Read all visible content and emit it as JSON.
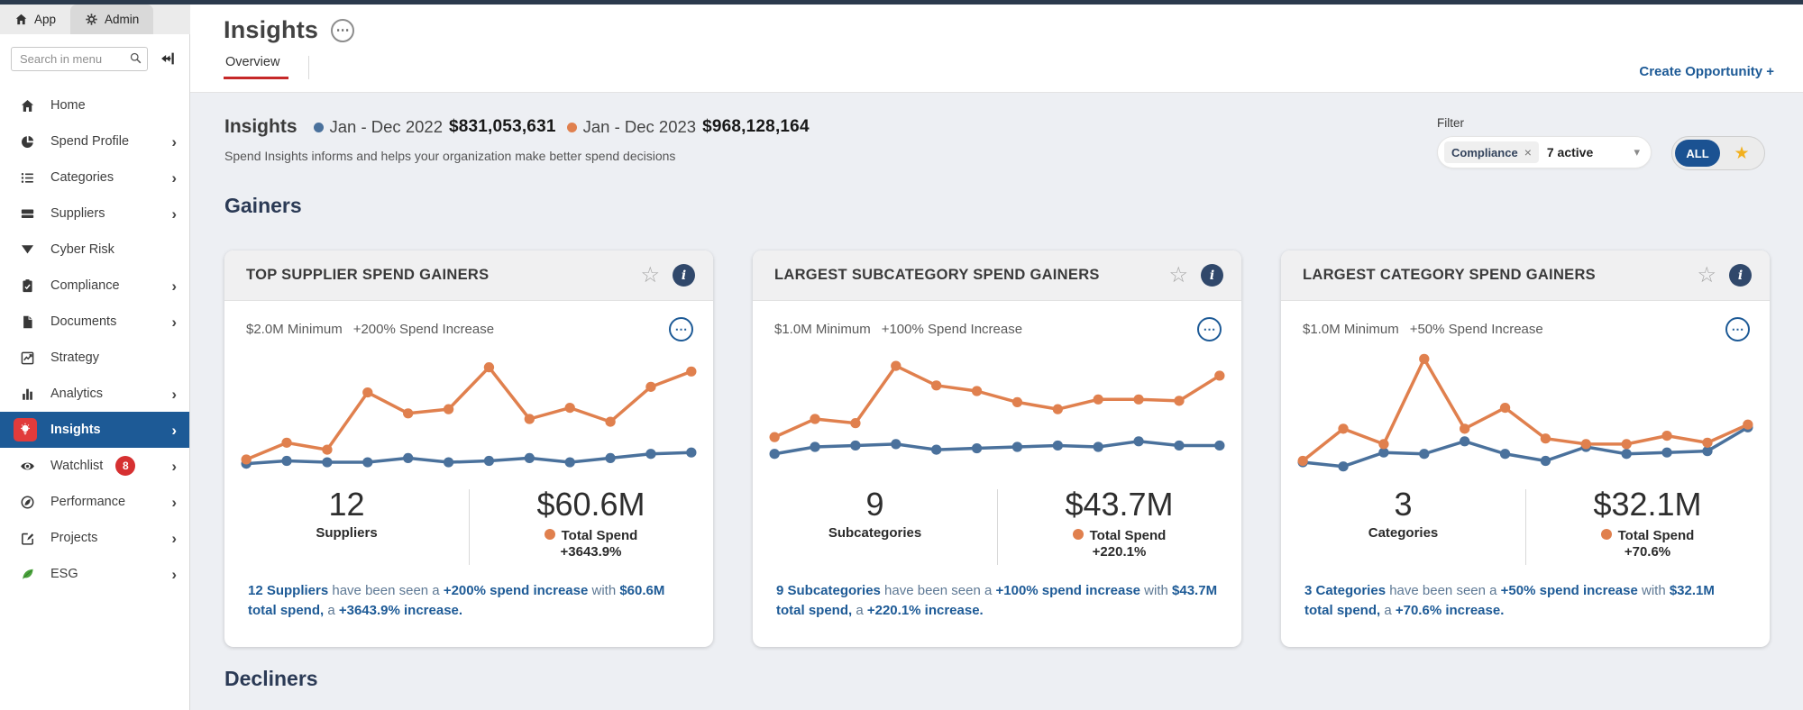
{
  "colors": {
    "navy": "#1d5a96",
    "series_blue": "#4a719c",
    "series_orange": "#e0804e",
    "red_accent": "#c62828",
    "badge_red": "#d63031",
    "star_yellow": "#f2b01e",
    "active_item_bg": "#1d5a96",
    "info_circle": "#30486b"
  },
  "topbar": {
    "app_tab": "App",
    "admin_tab": "Admin",
    "app_icon": "home-icon",
    "admin_icon": "gear-icon"
  },
  "sidebar": {
    "search_placeholder": "Search in menu",
    "search_icon": "search-icon",
    "collapse_icon": "collapse-sidebar-icon",
    "items": [
      {
        "label": "Home",
        "icon": "home-icon",
        "chevron": false,
        "active": false
      },
      {
        "label": "Spend Profile",
        "icon": "pie-chart-icon",
        "chevron": true,
        "active": false
      },
      {
        "label": "Categories",
        "icon": "list-icon",
        "chevron": true,
        "active": false
      },
      {
        "label": "Suppliers",
        "icon": "cards-icon",
        "chevron": true,
        "active": false
      },
      {
        "label": "Cyber Risk",
        "icon": "funnel-icon",
        "chevron": false,
        "active": false
      },
      {
        "label": "Compliance",
        "icon": "clipboard-check-icon",
        "chevron": true,
        "active": false
      },
      {
        "label": "Documents",
        "icon": "document-icon",
        "chevron": true,
        "active": false
      },
      {
        "label": "Strategy",
        "icon": "line-chart-icon",
        "chevron": false,
        "active": false
      },
      {
        "label": "Analytics",
        "icon": "bar-chart-icon",
        "chevron": true,
        "active": false
      },
      {
        "label": "Insights",
        "icon": "lightbulb-icon",
        "chevron": true,
        "active": true
      },
      {
        "label": "Watchlist",
        "icon": "eye-icon",
        "chevron": true,
        "active": false,
        "badge": "8"
      },
      {
        "label": "Performance",
        "icon": "performance-icon",
        "chevron": true,
        "active": false
      },
      {
        "label": "Projects",
        "icon": "edit-icon",
        "chevron": true,
        "active": false
      },
      {
        "label": "ESG",
        "icon": "leaf-icon",
        "chevron": true,
        "active": false
      }
    ]
  },
  "page": {
    "title": "Insights",
    "title_menu_icon": "ellipsis-circle-icon",
    "tab": "Overview",
    "create_opportunity": "Create Opportunity +"
  },
  "insights_header": {
    "title": "Insights",
    "legend": [
      {
        "label": "Jan - Dec 2022",
        "value": "$831,053,631",
        "color": "#4a719c"
      },
      {
        "label": "Jan - Dec 2023",
        "value": "$968,128,164",
        "color": "#e0804e"
      }
    ],
    "subtitle": "Spend Insights informs and helps your organization make better spend decisions",
    "filter": {
      "label": "Filter",
      "chip": "Compliance",
      "chip_close": "×",
      "active_text": "7 active",
      "caret": "▾",
      "all_label": "ALL",
      "star": "★"
    }
  },
  "sections": {
    "gainers": "Gainers",
    "decliners": "Decliners"
  },
  "cards": [
    {
      "title": "TOP SUPPLIER SPEND GAINERS",
      "meta_min": "$2.0M Minimum",
      "meta_increase": "+200% Spend Increase",
      "menu_icon": "ellipsis-circle-icon",
      "count": "12",
      "count_label": "Suppliers",
      "total": "$60.6M",
      "total_label": "Total Spend",
      "total_change": "+3643.9%",
      "footer": [
        {
          "t": "b",
          "s": "12 Suppliers"
        },
        {
          "t": "n",
          "s": " have been seen a "
        },
        {
          "t": "b",
          "s": "+200% spend increase"
        },
        {
          "t": "n",
          "s": " with "
        },
        {
          "t": "b",
          "s": "$60.6M total spend,"
        },
        {
          "t": "n",
          "s": " a "
        },
        {
          "t": "b",
          "s": "+3643.9% increase."
        }
      ]
    },
    {
      "title": "LARGEST SUBCATEGORY SPEND GAINERS",
      "meta_min": "$1.0M Minimum",
      "meta_increase": "+100% Spend Increase",
      "menu_icon": "ellipsis-circle-icon",
      "count": "9",
      "count_label": "Subcategories",
      "total": "$43.7M",
      "total_label": "Total Spend",
      "total_change": "+220.1%",
      "footer": [
        {
          "t": "b",
          "s": "9 Subcategories"
        },
        {
          "t": "n",
          "s": " have been seen a "
        },
        {
          "t": "b",
          "s": "+100% spend increase"
        },
        {
          "t": "n",
          "s": " with "
        },
        {
          "t": "b",
          "s": "$43.7M total spend,"
        },
        {
          "t": "n",
          "s": " a "
        },
        {
          "t": "b",
          "s": "+220.1% increase."
        }
      ]
    },
    {
      "title": "LARGEST CATEGORY SPEND GAINERS",
      "meta_min": "$1.0M Minimum",
      "meta_increase": "+50% Spend Increase",
      "menu_icon": "ellipsis-circle-icon",
      "count": "3",
      "count_label": "Categories",
      "total": "$32.1M",
      "total_label": "Total Spend",
      "total_change": "+70.6%",
      "footer": [
        {
          "t": "b",
          "s": "3 Categories"
        },
        {
          "t": "n",
          "s": " have been seen a "
        },
        {
          "t": "b",
          "s": "+50% spend increase"
        },
        {
          "t": "n",
          "s": " with "
        },
        {
          "t": "b",
          "s": "$32.1M total spend,"
        },
        {
          "t": "n",
          "s": " a "
        },
        {
          "t": "b",
          "s": "+70.6% increase."
        }
      ]
    }
  ],
  "chart_data": [
    {
      "type": "line",
      "title": "TOP SUPPLIER SPEND GAINERS",
      "x": [
        1,
        2,
        3,
        4,
        5,
        6,
        7,
        8,
        9,
        10,
        11,
        12
      ],
      "xlabel": "",
      "ylabel": "",
      "axes_visible": false,
      "grid": false,
      "legend_position": "page-header",
      "units": "relative scale 0-100 (chart has no visible axes)",
      "series": [
        {
          "name": "Jan - Dec 2022",
          "color": "#4a719c",
          "values": [
            8,
            10,
            9,
            9,
            12,
            9,
            10,
            12,
            9,
            12,
            15,
            16
          ]
        },
        {
          "name": "Jan - Dec 2023",
          "color": "#e0804e",
          "values": [
            11,
            23,
            18,
            59,
            44,
            47,
            77,
            40,
            48,
            38,
            63,
            74
          ]
        }
      ]
    },
    {
      "type": "line",
      "title": "LARGEST SUBCATEGORY SPEND GAINERS",
      "x": [
        1,
        2,
        3,
        4,
        5,
        6,
        7,
        8,
        9,
        10,
        11,
        12
      ],
      "xlabel": "",
      "ylabel": "",
      "axes_visible": false,
      "grid": false,
      "legend_position": "page-header",
      "units": "relative scale 0-100 (chart has no visible axes)",
      "series": [
        {
          "name": "Jan - Dec 2022",
          "color": "#4a719c",
          "values": [
            15,
            20,
            21,
            22,
            18,
            19,
            20,
            21,
            20,
            24,
            21,
            21
          ]
        },
        {
          "name": "Jan - Dec 2023",
          "color": "#e0804e",
          "values": [
            27,
            40,
            37,
            78,
            64,
            60,
            52,
            47,
            54,
            54,
            53,
            71
          ]
        }
      ]
    },
    {
      "type": "line",
      "title": "LARGEST CATEGORY SPEND GAINERS",
      "x": [
        1,
        2,
        3,
        4,
        5,
        6,
        7,
        8,
        9,
        10,
        11,
        12
      ],
      "xlabel": "",
      "ylabel": "",
      "axes_visible": false,
      "grid": false,
      "legend_position": "page-header",
      "units": "relative scale 0-100 (chart has no visible axes)",
      "series": [
        {
          "name": "Jan - Dec 2022",
          "color": "#4a719c",
          "values": [
            9,
            6,
            16,
            15,
            24,
            15,
            10,
            20,
            15,
            16,
            17,
            34
          ]
        },
        {
          "name": "Jan - Dec 2023",
          "color": "#e0804e",
          "values": [
            10,
            33,
            22,
            83,
            33,
            48,
            26,
            22,
            22,
            28,
            23,
            36
          ]
        }
      ]
    }
  ]
}
